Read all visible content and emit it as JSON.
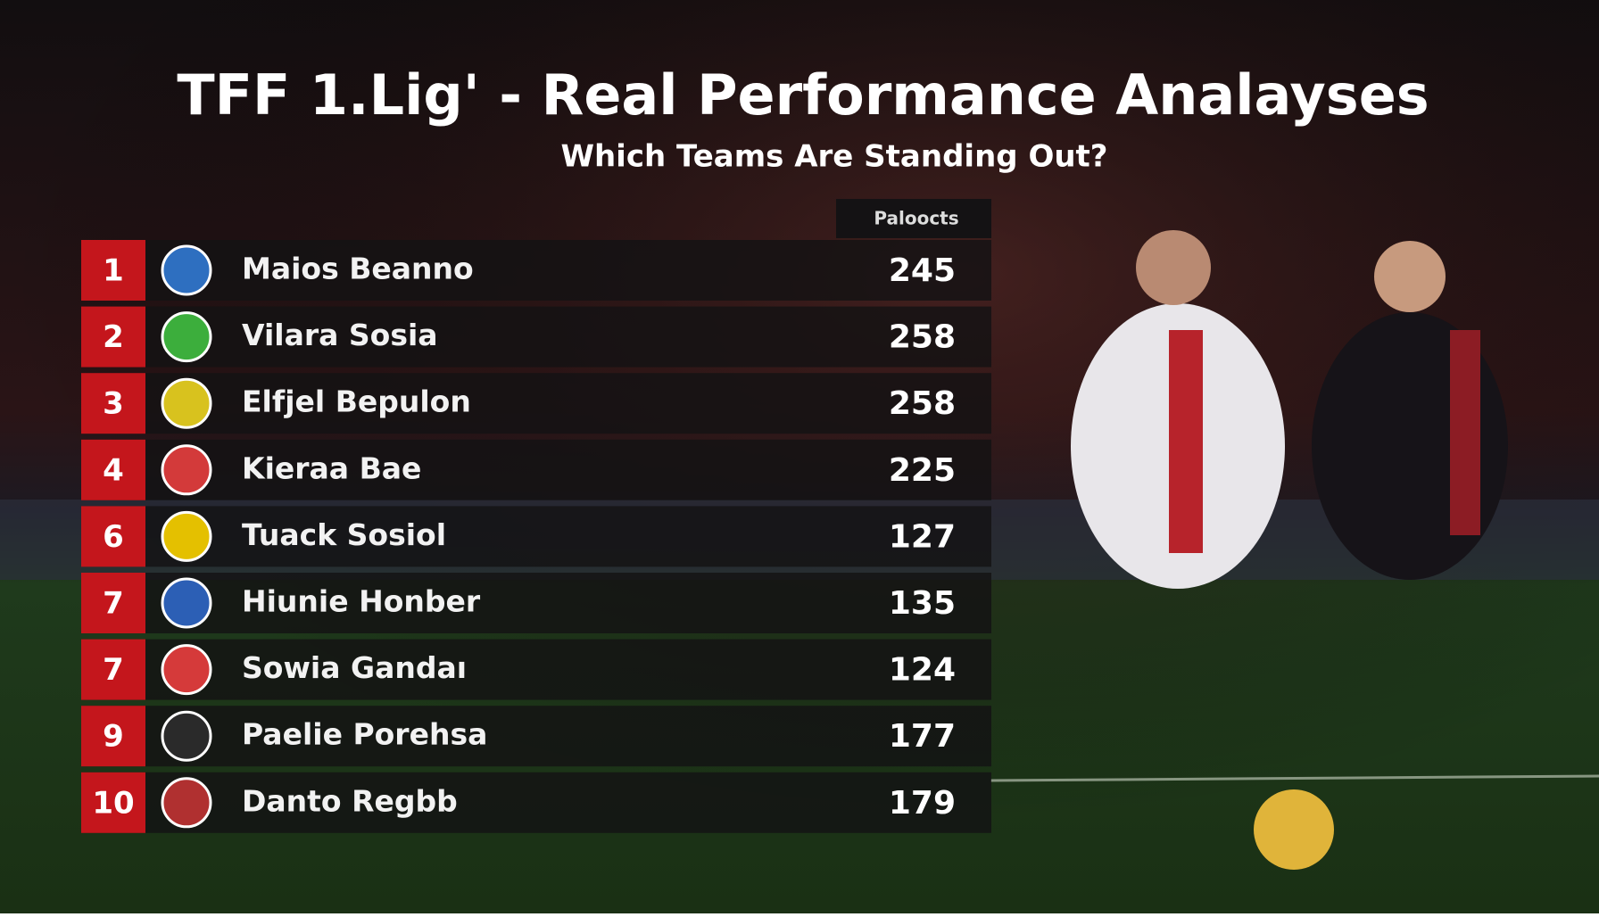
{
  "header": {
    "title": "TFF 1.Lig' - Real Performance Analayses",
    "subtitle": "Which Teams Are Standing Out?"
  },
  "table": {
    "column": "Paloocts",
    "rows": [
      {
        "rank": "1",
        "team": "Maios Beanno",
        "points": "245"
      },
      {
        "rank": "2",
        "team": "Vilara Sosia",
        "points": "258"
      },
      {
        "rank": "3",
        "team": "Elfjel Bepulon",
        "points": "258"
      },
      {
        "rank": "4",
        "team": "Kierаa Bae",
        "points": "225"
      },
      {
        "rank": "6",
        "team": "Tuack Sosiol",
        "points": "127"
      },
      {
        "rank": "7",
        "team": "Hiunie Honber",
        "points": "135"
      },
      {
        "rank": "7",
        "team": "Sowia Gandaı",
        "points": "124"
      },
      {
        "rank": "9",
        "team": "Paelie Porehsa",
        "points": "177"
      },
      {
        "rank": "10",
        "team": "Danto Regbb",
        "points": "179"
      }
    ]
  }
}
